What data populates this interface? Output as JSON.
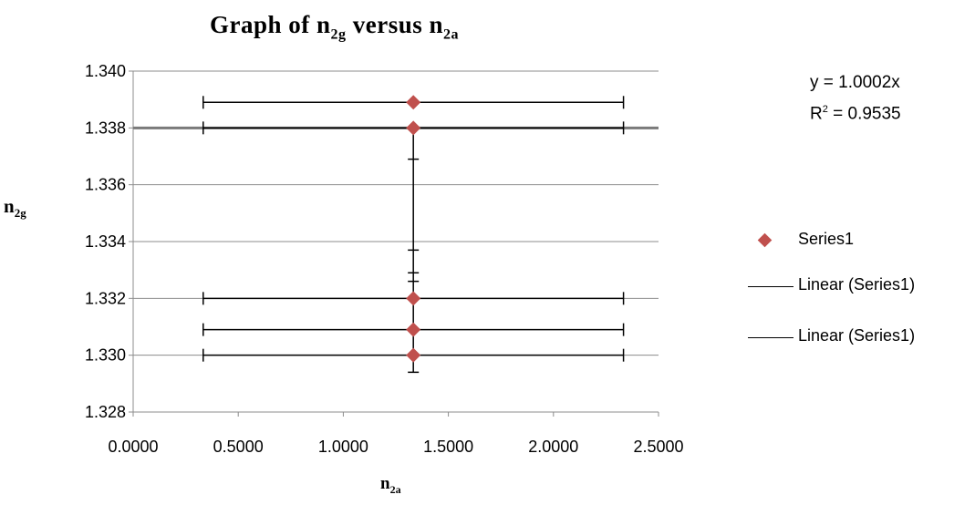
{
  "chart_data": {
    "type": "scatter",
    "title": {
      "main": "Graph of n",
      "main_sub": "2g",
      "rest": " versus n",
      "rest_sub": "2a"
    },
    "xlabel": {
      "main": "n",
      "sub": "2a"
    },
    "ylabel": {
      "main": "n",
      "sub": "2g"
    },
    "xlim": [
      0,
      2.5
    ],
    "ylim": [
      1.328,
      1.34
    ],
    "x_ticks": [
      "0.0000",
      "0.5000",
      "1.0000",
      "1.5000",
      "2.0000",
      "2.5000"
    ],
    "y_ticks": [
      "1.328",
      "1.330",
      "1.332",
      "1.334",
      "1.336",
      "1.338",
      "1.340"
    ],
    "grid": true,
    "legend_position": "right",
    "series": [
      {
        "name": "Series1",
        "color": "#c0504d",
        "marker": "diamond",
        "points": [
          {
            "x": 1.3333,
            "y": 1.3389,
            "xerr": 1.0,
            "yerr": 0.0
          },
          {
            "x": 1.3333,
            "y": 1.338,
            "xerr": 1.0,
            "yerr": 0.0
          },
          {
            "x": 1.3333,
            "y": 1.332,
            "xerr": 1.0,
            "yerr": 0.0
          },
          {
            "x": 1.3333,
            "y": 1.3309,
            "xerr": 1.0,
            "yerr": 0.0
          },
          {
            "x": 1.3333,
            "y": 1.33,
            "xerr": 1.0,
            "yerr": 0.0006
          }
        ],
        "vertical_error_span": [
          1.33,
          1.338
        ],
        "vertical_error_caps": [
          1.3369,
          1.3337,
          1.3329,
          1.3326
        ]
      }
    ],
    "trendlines": [
      {
        "name": "Linear (Series1)",
        "color": "#000000"
      },
      {
        "name": "Linear (Series1)",
        "color": "#000000"
      }
    ],
    "trendline_display": {
      "equation": "y = 1.0002x",
      "r2_label": "R",
      "r2_sup": "2",
      "r2_value": " = 0.9535"
    },
    "trendline_y_level": 1.338
  }
}
